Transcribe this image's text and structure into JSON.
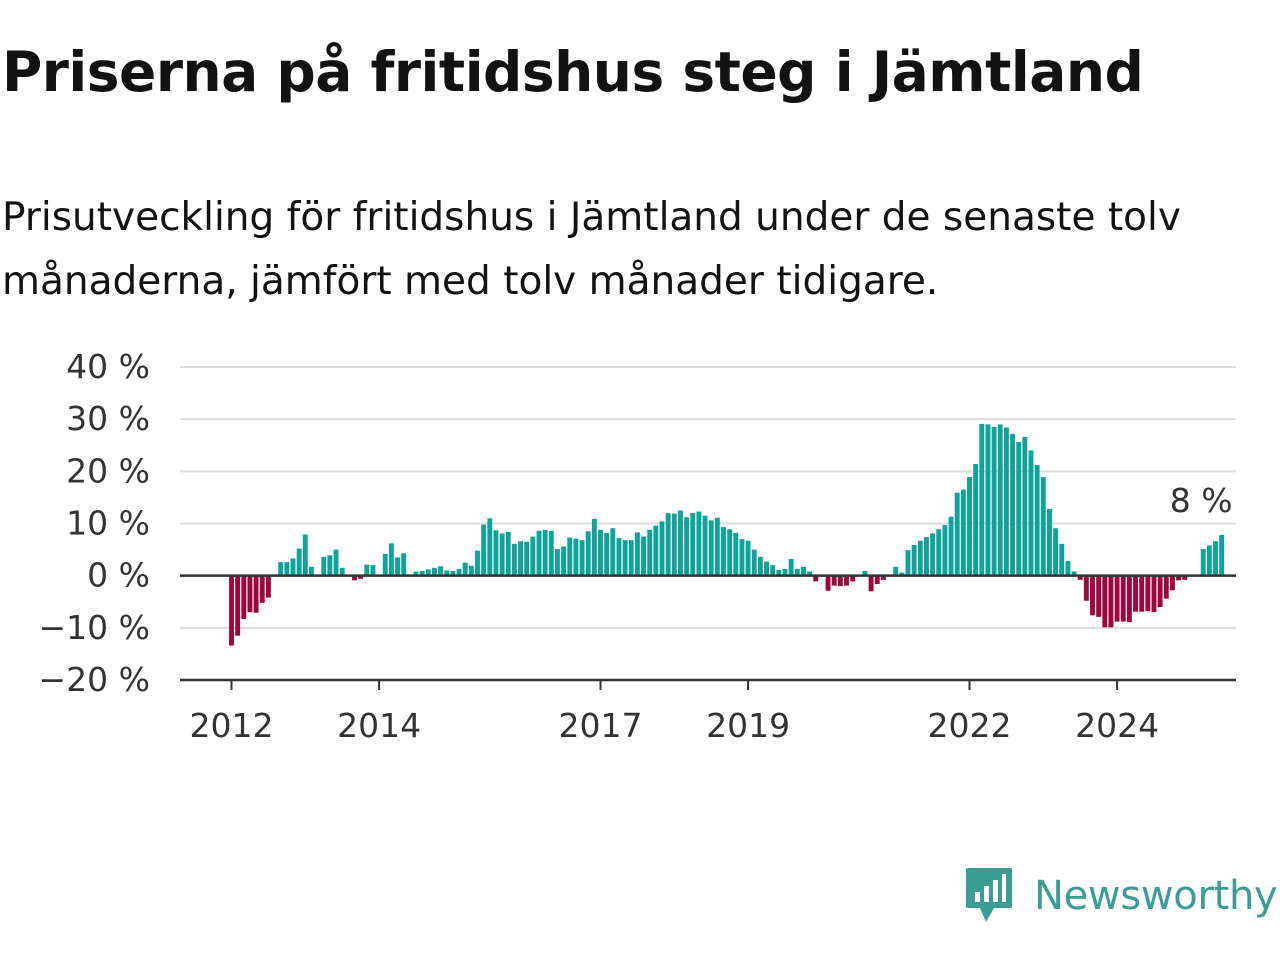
{
  "title": "Priserna på fritidshus steg i Jämtland",
  "subtitle": "Prisutveckling för fritidshus i Jämtland under de senaste tolv månaderna, jämfört med tolv månader tidigare.",
  "brand": {
    "name": "Newsworthy",
    "color": "#3a9e94"
  },
  "colors": {
    "positive": "#0fa39a",
    "negative": "#a0063e",
    "grid": "#dddddd",
    "baseline": "#333333"
  },
  "chart_data": {
    "type": "bar",
    "ylim": [
      -20,
      40
    ],
    "yticks": [
      40,
      30,
      20,
      10,
      0,
      -10,
      -20
    ],
    "ytick_labels": [
      "40 %",
      "30 %",
      "20 %",
      "10 %",
      "0 %",
      "−10 %",
      "−20 %"
    ],
    "xticks": [
      {
        "label": "2012",
        "date": "2012-01"
      },
      {
        "label": "2014",
        "date": "2014-01"
      },
      {
        "label": "2017",
        "date": "2017-01"
      },
      {
        "label": "2019",
        "date": "2019-01"
      },
      {
        "label": "2022",
        "date": "2022-01"
      },
      {
        "label": "2024",
        "date": "2024-01"
      }
    ],
    "start": "2012-01",
    "annotation": {
      "text": "8 %",
      "date": "2025-03"
    },
    "values": [
      -13.4,
      -11.5,
      -8.3,
      -7.0,
      -7.1,
      -5.2,
      -4.2,
      0,
      2.6,
      2.6,
      3.3,
      5.2,
      7.9,
      1.7,
      0,
      3.6,
      3.9,
      5.0,
      1.5,
      0,
      -0.9,
      -0.6,
      2.1,
      2.0,
      0,
      4.2,
      6.2,
      3.5,
      4.3,
      0,
      0.8,
      0.9,
      1.2,
      1.5,
      1.8,
      1.0,
      0.9,
      1.3,
      2.5,
      1.9,
      4.8,
      9.8,
      11.0,
      8.7,
      8.1,
      8.4,
      6.1,
      6.6,
      6.5,
      7.5,
      8.6,
      8.8,
      8.6,
      5.1,
      5.6,
      7.3,
      7.1,
      6.8,
      8.5,
      10.9,
      8.8,
      8.2,
      9.1,
      7.2,
      6.8,
      6.8,
      8.3,
      7.5,
      8.8,
      9.6,
      10.4,
      12.0,
      11.9,
      12.5,
      11.2,
      12.0,
      12.3,
      11.5,
      10.6,
      11.1,
      9.3,
      8.9,
      8.2,
      7.0,
      6.7,
      5.0,
      3.6,
      2.7,
      2.0,
      1.1,
      1.3,
      3.2,
      1.3,
      1.7,
      0.8,
      -1.1,
      0,
      -2.9,
      -1.9,
      -2.0,
      -1.9,
      -1.1,
      0,
      0.9,
      -3.0,
      -1.6,
      -0.8,
      0,
      1.7,
      0.6,
      4.9,
      5.9,
      6.7,
      7.4,
      8.1,
      8.9,
      9.7,
      11.3,
      15.9,
      16.5,
      18.9,
      21.4,
      29.1,
      29.0,
      28.5,
      29.0,
      28.4,
      27.2,
      25.6,
      26.6,
      24.0,
      21.2,
      18.9,
      12.8,
      9.1,
      6.1,
      2.8,
      0.8,
      -0.8,
      -4.8,
      -7.6,
      -7.9,
      -9.9,
      -9.9,
      -8.8,
      -8.8,
      -8.9,
      -6.9,
      -6.9,
      -6.8,
      -7.0,
      -6.0,
      -4.4,
      -2.8,
      -0.9,
      -0.8,
      0,
      0,
      5.1,
      5.8,
      6.6,
      7.8
    ]
  }
}
